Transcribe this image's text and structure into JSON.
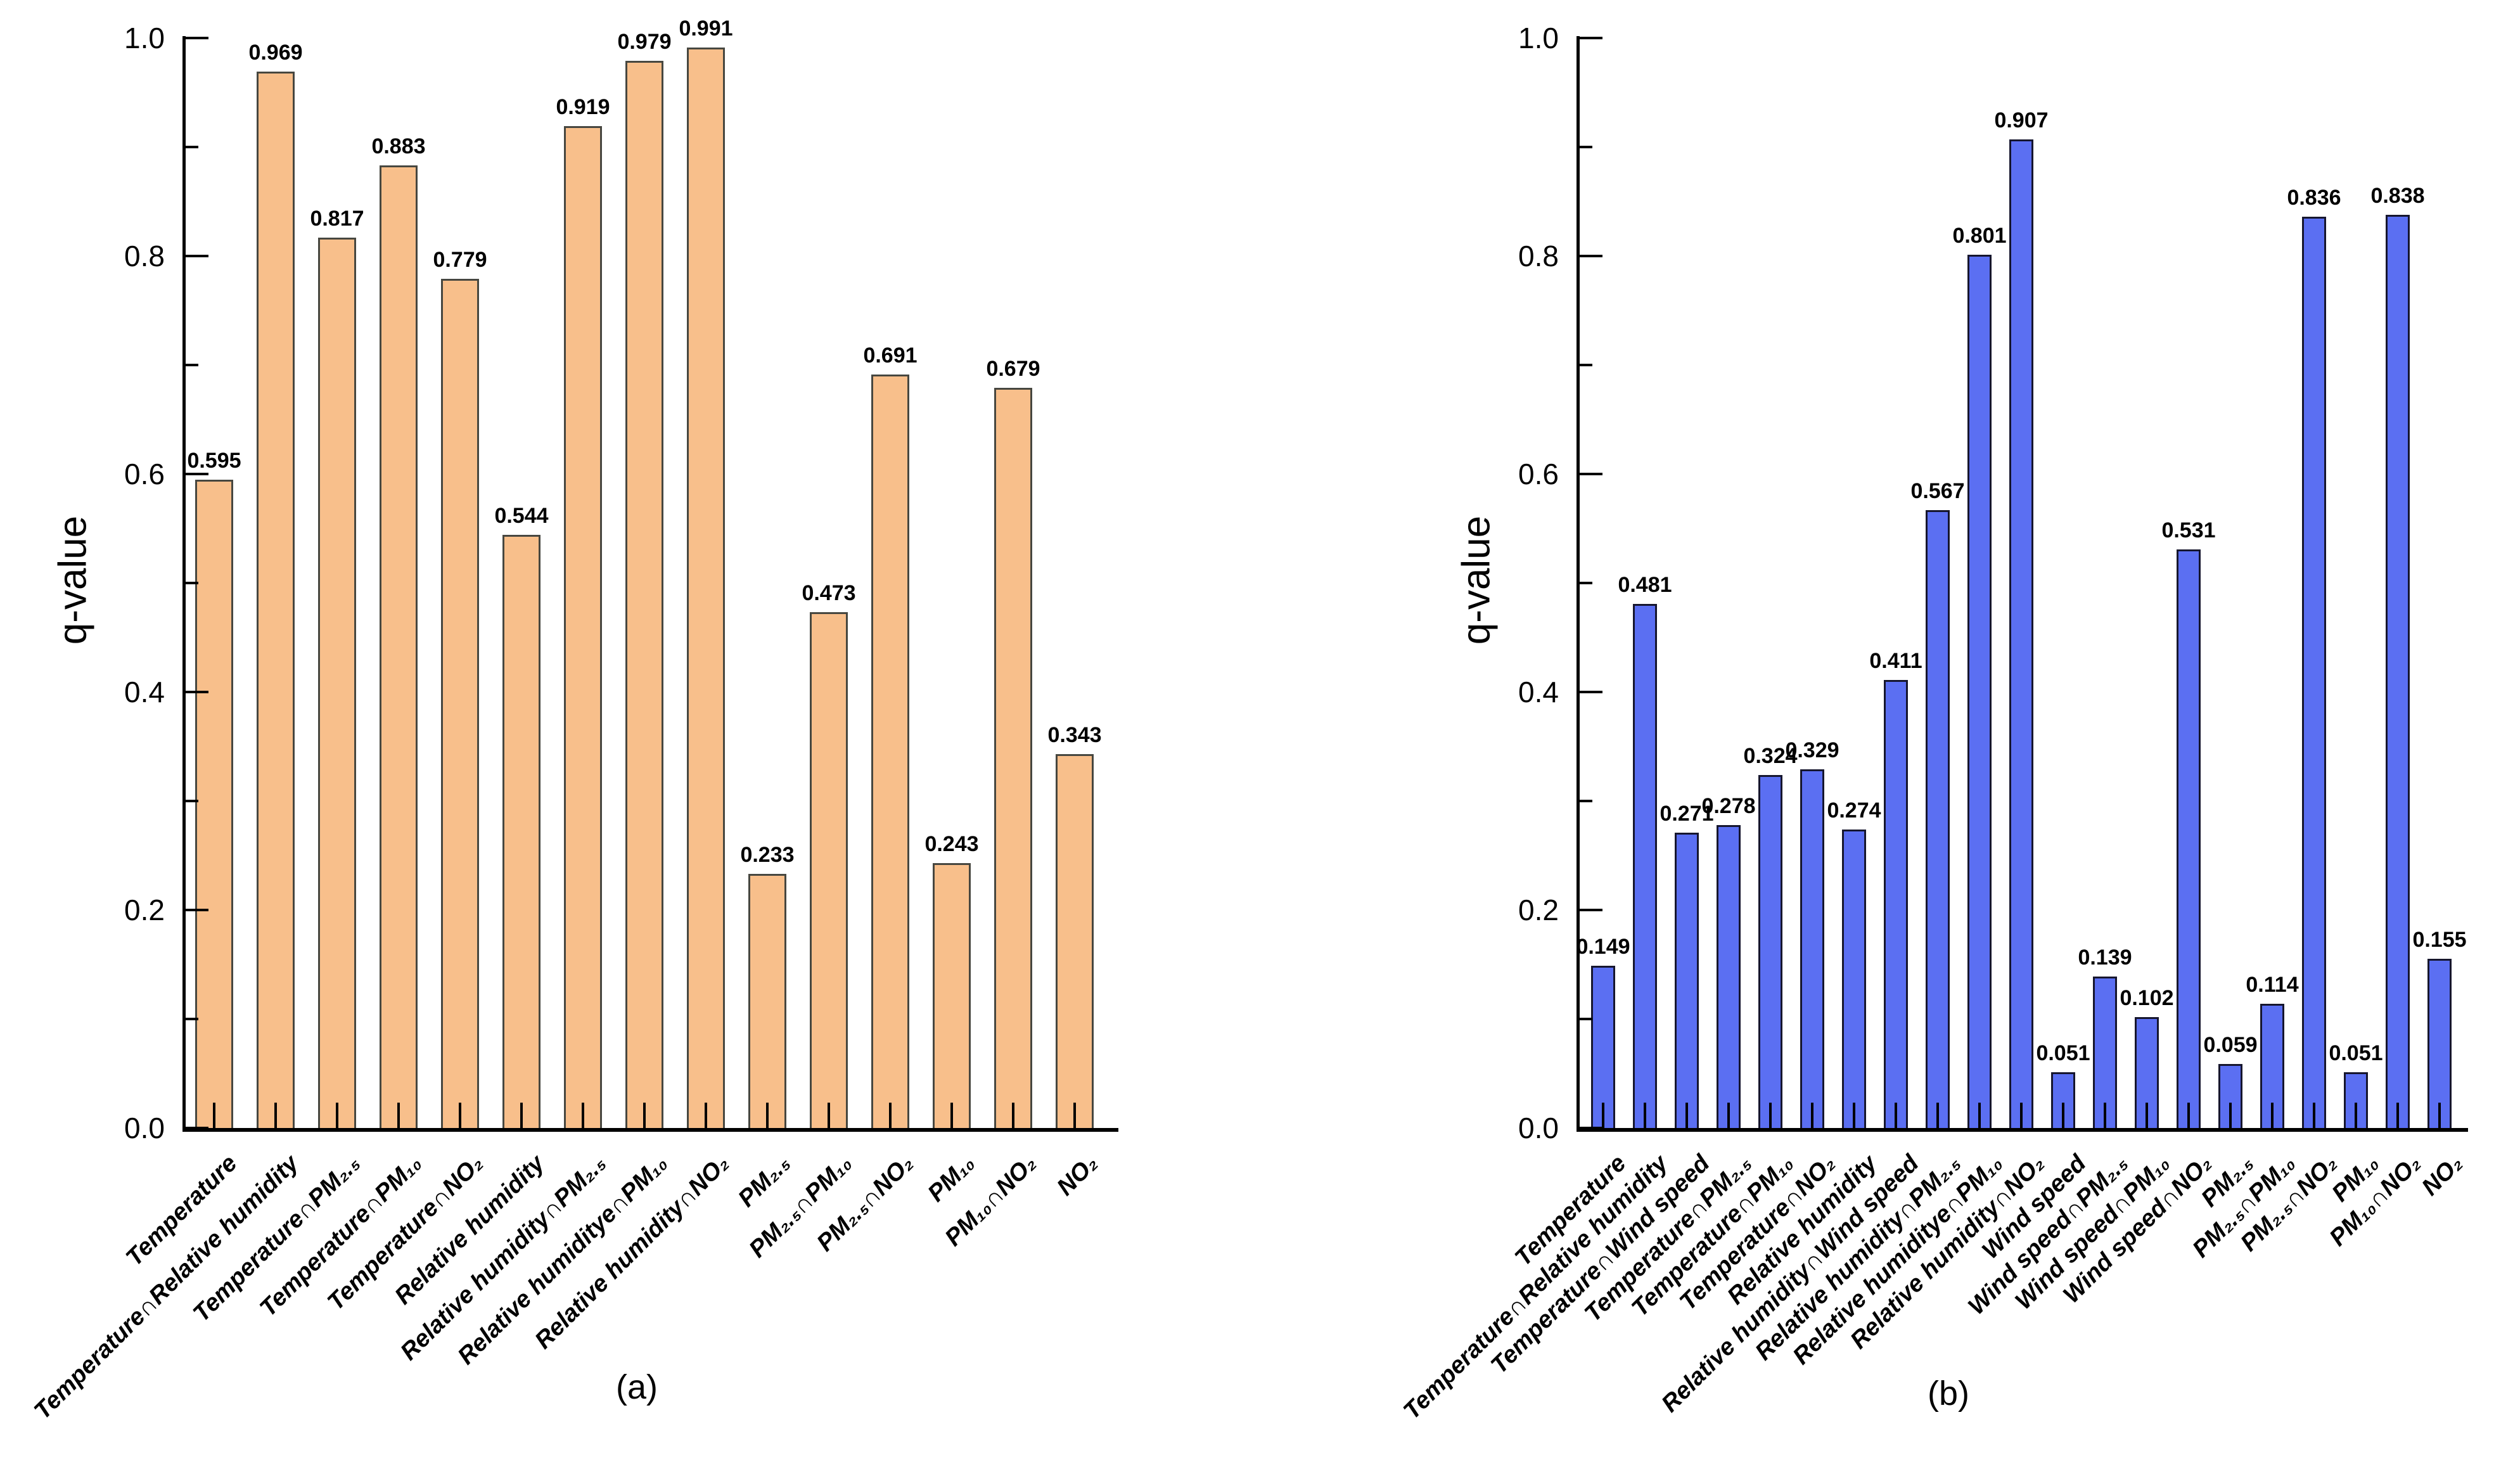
{
  "figure": {
    "background": "#ffffff",
    "axis_color": "#000000",
    "text_color": "#000000"
  },
  "chart_data": [
    {
      "type": "bar",
      "panel_label": "(a)",
      "ylabel": "q-value",
      "ylim": [
        0.0,
        1.0
      ],
      "yticks": [
        0.0,
        0.2,
        0.4,
        0.6,
        0.8,
        1.0
      ],
      "ytick_labels": [
        "0.0",
        "0.2",
        "0.4",
        "0.6",
        "0.8",
        "1.0"
      ],
      "minor_tick_step": 0.1,
      "grid": false,
      "legend": "none",
      "bar_color": "#F8BF8B",
      "bar_border_color": "#474740",
      "categories": [
        "Temperature",
        "Temperature∩Relative humidity",
        "Temperature∩PM₂.₅",
        "Temperature∩PM₁₀",
        "Temperature∩NO₂",
        "Relative humidity",
        "Relative humidity∩PM₂.₅",
        "Relative humiditye∩PM₁₀",
        "Relative humidity∩NO₂",
        "PM₂.₅",
        "PM₂.₅∩PM₁₀",
        "PM₂.₅∩NO₂",
        "PM₁₀",
        "PM₁₀∩NO₂",
        "NO₂"
      ],
      "values": [
        0.595,
        0.969,
        0.817,
        0.883,
        0.779,
        0.544,
        0.919,
        0.979,
        0.991,
        0.233,
        0.473,
        0.691,
        0.243,
        0.679,
        0.343
      ],
      "value_labels": [
        "0.595",
        "0.969",
        "0.817",
        "0.883",
        "0.779",
        "0.544",
        "0.919",
        "0.979",
        "0.991",
        "0.233",
        "0.473",
        "0.691",
        "0.243",
        "0.679",
        "0.343"
      ]
    },
    {
      "type": "bar",
      "panel_label": "(b)",
      "ylabel": "q-value",
      "ylim": [
        0.0,
        1.0
      ],
      "yticks": [
        0.0,
        0.2,
        0.4,
        0.6,
        0.8,
        1.0
      ],
      "ytick_labels": [
        "0.0",
        "0.2",
        "0.4",
        "0.6",
        "0.8",
        "1.0"
      ],
      "minor_tick_step": 0.1,
      "grid": false,
      "legend": "none",
      "bar_color": "#5B6FF2",
      "bar_border_color": "#16162e",
      "categories": [
        "Temperature",
        "Temperature∩Relative humidity",
        "Temperature∩Wind speed",
        "Temperature∩PM₂.₅",
        "Temperature∩PM₁₀",
        "Temperature∩NO₂",
        "Relative humidity",
        "Relative humidity∩Wind speed",
        "Relative humidity∩PM₂.₅",
        "Relative humiditye∩PM₁₀",
        "Relative humidity∩NO₂",
        "Wind speed",
        "Wind speed∩PM₂.₅",
        "Wind speed∩PM₁₀",
        "Wind speed∩NO₂",
        "PM₂.₅",
        "PM₂.₅∩PM₁₀",
        "PM₂.₅∩NO₂",
        "PM₁₀",
        "PM₁₀∩NO₂",
        "NO₂"
      ],
      "values": [
        0.149,
        0.481,
        0.271,
        0.278,
        0.324,
        0.329,
        0.274,
        0.411,
        0.567,
        0.801,
        0.907,
        0.051,
        0.139,
        0.102,
        0.531,
        0.059,
        0.114,
        0.836,
        0.051,
        0.838,
        0.155
      ],
      "value_labels": [
        "0.149",
        "0.481",
        "0.271",
        "0.278",
        "0.324",
        "0.329",
        "0.274",
        "0.411",
        "0.567",
        "0.801",
        "0.907",
        "0.051",
        "0.139",
        "0.102",
        "0.531",
        "0.059",
        "0.114",
        "0.836",
        "0.051",
        "0.838",
        "0.155"
      ]
    }
  ]
}
